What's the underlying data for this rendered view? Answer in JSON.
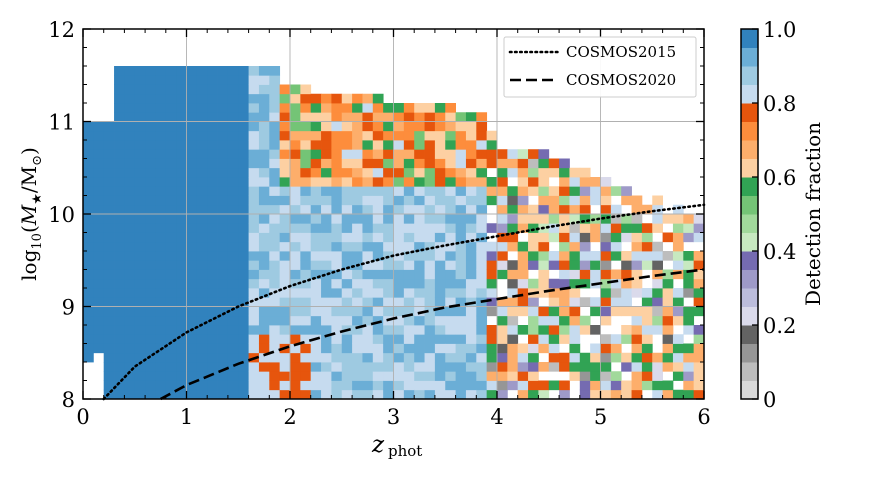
{
  "chart_data": {
    "type": "heatmap",
    "xlabel": "z_phot",
    "ylabel": "log10(M*/M⊙)",
    "xlim": [
      0,
      6
    ],
    "ylim": [
      8,
      12
    ],
    "x_ticks": [
      "0",
      "1",
      "2",
      "3",
      "4",
      "5",
      "6"
    ],
    "y_ticks": [
      "8",
      "9",
      "10",
      "11",
      "12"
    ],
    "grid": true,
    "legend_position": "top-right",
    "colorbar": {
      "label": "Detection fraction",
      "range": [
        0,
        1
      ],
      "ticks": [
        "0",
        "0.2",
        "0.4",
        "0.6",
        "0.8",
        "1.0"
      ],
      "colors": [
        "#d9d9d9",
        "#bdbdbd",
        "#969696",
        "#636363",
        "#dadaeb",
        "#bcbddc",
        "#9e9ac8",
        "#756bb1",
        "#c7e9c0",
        "#a1d99b",
        "#74c476",
        "#31a354",
        "#fdd0a2",
        "#fdae6b",
        "#fd8d3c",
        "#e6550d",
        "#c6dbef",
        "#9ecae1",
        "#6baed6",
        "#3182bd"
      ]
    },
    "heatmap": {
      "x_bin_width": 0.1,
      "y_bin_width": 0.1,
      "description_regions": [
        {
          "zmin": 0.0,
          "zmax": 1.6,
          "value": 0.97
        },
        {
          "zmin": 1.6,
          "zmax": 3.9,
          "value": 0.85
        },
        {
          "zmin": 3.9,
          "zmax": 6.0,
          "value": 0.55
        }
      ]
    },
    "series": [
      {
        "name": "COSMOS2015",
        "style": "dotted",
        "x": [
          0.2,
          0.5,
          1.0,
          1.5,
          2.0,
          2.5,
          3.0,
          3.5,
          4.0,
          4.5,
          5.0,
          5.5,
          6.0
        ],
        "y": [
          8.0,
          8.35,
          8.72,
          9.0,
          9.22,
          9.4,
          9.55,
          9.66,
          9.76,
          9.86,
          9.95,
          10.03,
          10.1
        ]
      },
      {
        "name": "COSMOS2020",
        "style": "dashed",
        "x": [
          0.75,
          1.0,
          1.5,
          2.0,
          2.5,
          3.0,
          3.5,
          4.0,
          4.5,
          5.0,
          5.5,
          6.0
        ],
        "y": [
          8.0,
          8.15,
          8.38,
          8.57,
          8.73,
          8.87,
          8.99,
          9.08,
          9.17,
          9.25,
          9.33,
          9.4
        ]
      }
    ]
  }
}
